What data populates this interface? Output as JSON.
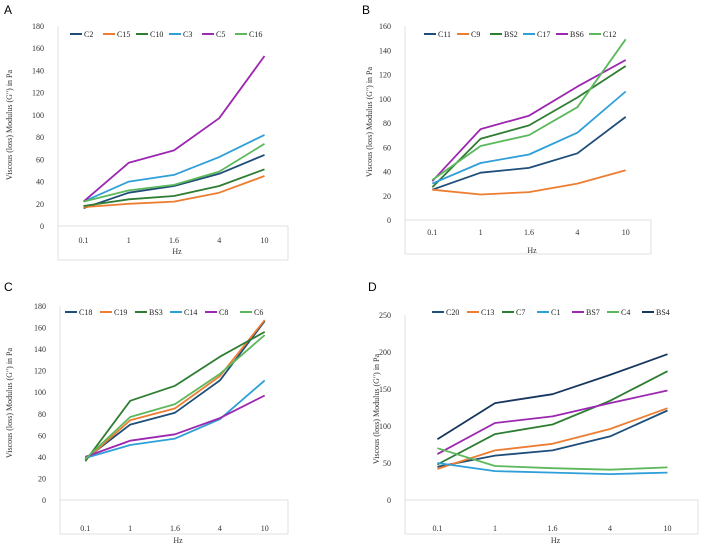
{
  "chart_data": [
    {
      "type": "line",
      "panel": "A",
      "categories": [
        "0.1",
        "1",
        "1.6",
        "4",
        "10"
      ],
      "ylabel": "Viscous (loss) Modulus (G\") in Pa",
      "xlabel": "Hz",
      "ylim": [
        0,
        180
      ],
      "yticks": [
        0,
        20,
        40,
        60,
        80,
        100,
        120,
        140,
        160,
        180
      ],
      "legend": "top-left",
      "series": [
        {
          "name": "C2",
          "color": "#1f4e79",
          "values": [
            16,
            30,
            36,
            47,
            64
          ]
        },
        {
          "name": "C15",
          "color": "#ed7d31",
          "values": [
            17,
            20,
            22,
            30,
            45
          ]
        },
        {
          "name": "C10",
          "color": "#2e7d32",
          "values": [
            18,
            24,
            27,
            36,
            51
          ]
        },
        {
          "name": "C3",
          "color": "#2e9fd8",
          "values": [
            22,
            40,
            46,
            62,
            82
          ]
        },
        {
          "name": "C5",
          "color": "#9c27b0",
          "values": [
            22,
            57,
            68,
            97,
            153
          ]
        },
        {
          "name": "C16",
          "color": "#5cb85c",
          "values": [
            22,
            32,
            37,
            49,
            74
          ]
        }
      ]
    },
    {
      "type": "line",
      "panel": "B",
      "categories": [
        "0.1",
        "1",
        "1.6",
        "4",
        "10"
      ],
      "ylabel": "Viscous (loss) Modulus (G\") in Pa",
      "xlabel": "Hz",
      "ylim": [
        0,
        160
      ],
      "yticks": [
        0,
        20,
        40,
        60,
        80,
        100,
        120,
        140,
        160
      ],
      "legend": "top-left",
      "series": [
        {
          "name": "C11",
          "color": "#1f4e79",
          "values": [
            25,
            39,
            43,
            55,
            85
          ]
        },
        {
          "name": "C9",
          "color": "#ed7d31",
          "values": [
            25,
            21,
            23,
            30,
            41
          ]
        },
        {
          "name": "BS2",
          "color": "#2e7d32",
          "values": [
            27,
            67,
            78,
            101,
            127
          ]
        },
        {
          "name": "C17",
          "color": "#2e9fd8",
          "values": [
            30,
            47,
            54,
            72,
            106
          ]
        },
        {
          "name": "BS6",
          "color": "#9c27b0",
          "values": [
            32,
            75,
            86,
            110,
            132
          ]
        },
        {
          "name": "C12",
          "color": "#5cb85c",
          "values": [
            33,
            61,
            70,
            93,
            149
          ]
        }
      ]
    },
    {
      "type": "line",
      "panel": "C",
      "categories": [
        "0.1",
        "1",
        "1.6",
        "4",
        "10"
      ],
      "ylabel": "Viscous (loss) Modulus (G\") in Pa",
      "xlabel": "Hz",
      "ylim": [
        0,
        180
      ],
      "yticks": [
        0,
        20,
        40,
        60,
        80,
        100,
        120,
        140,
        160,
        180
      ],
      "legend": "top-left",
      "series": [
        {
          "name": "C18",
          "color": "#1f4e79",
          "values": [
            38,
            70,
            81,
            111,
            166
          ]
        },
        {
          "name": "C19",
          "color": "#ed7d31",
          "values": [
            37,
            74,
            85,
            115,
            167
          ]
        },
        {
          "name": "BS3",
          "color": "#2e7d32",
          "values": [
            36,
            92,
            106,
            133,
            156
          ]
        },
        {
          "name": "C14",
          "color": "#2e9fd8",
          "values": [
            39,
            51,
            57,
            75,
            111
          ]
        },
        {
          "name": "C8",
          "color": "#9c27b0",
          "values": [
            40,
            55,
            61,
            76,
            97
          ]
        },
        {
          "name": "C6",
          "color": "#5cb85c",
          "values": [
            38,
            77,
            89,
            117,
            153
          ]
        }
      ]
    },
    {
      "type": "line",
      "panel": "D",
      "categories": [
        "0.1",
        "1",
        "1.6",
        "4",
        "10"
      ],
      "ylabel": "Viscous (loss) Modulus (G\") in Pa",
      "xlabel": "Hz",
      "ylim": [
        0,
        250
      ],
      "yticks": [
        0,
        50,
        100,
        150,
        200,
        250
      ],
      "legend": "top-left",
      "series": [
        {
          "name": "C20",
          "color": "#1f4e79",
          "values": [
            45,
            60,
            67,
            86,
            121
          ]
        },
        {
          "name": "C13",
          "color": "#ed7d31",
          "values": [
            42,
            67,
            76,
            96,
            124
          ]
        },
        {
          "name": "C7",
          "color": "#2e7d32",
          "values": [
            48,
            89,
            102,
            134,
            174
          ]
        },
        {
          "name": "C1",
          "color": "#2e9fd8",
          "values": [
            50,
            39,
            37,
            35,
            37
          ]
        },
        {
          "name": "BS7",
          "color": "#9c27b0",
          "values": [
            62,
            104,
            113,
            131,
            148
          ]
        },
        {
          "name": "C4",
          "color": "#5cb85c",
          "values": [
            70,
            46,
            43,
            41,
            44
          ]
        },
        {
          "name": "BS4",
          "color": "#17375e",
          "values": [
            82,
            131,
            143,
            169,
            197
          ]
        }
      ]
    }
  ]
}
